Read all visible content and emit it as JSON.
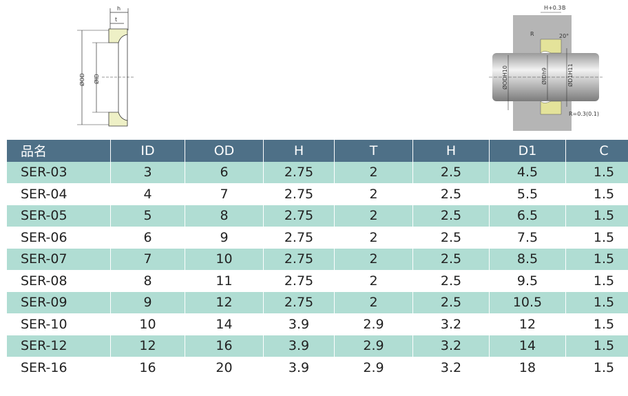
{
  "diagram_left": {
    "labels": [
      "h",
      "t",
      "ØOD",
      "ØID"
    ]
  },
  "diagram_right": {
    "labels": [
      "H+0.3",
      "B",
      "R",
      "20°",
      "ØODH10",
      "ØIDh9",
      "ØD1H11",
      "R=0.3(0.1)"
    ]
  },
  "table": {
    "header": [
      "品名",
      "ID",
      "OD",
      "H",
      "T",
      "H",
      "D1",
      "C"
    ],
    "rows": [
      [
        "SER-03",
        "3",
        "6",
        "2.75",
        "2",
        "2.5",
        "4.5",
        "1.5"
      ],
      [
        "SER-04",
        "4",
        "7",
        "2.75",
        "2",
        "2.5",
        "5.5",
        "1.5"
      ],
      [
        "SER-05",
        "5",
        "8",
        "2.75",
        "2",
        "2.5",
        "6.5",
        "1.5"
      ],
      [
        "SER-06",
        "6",
        "9",
        "2.75",
        "2",
        "2.5",
        "7.5",
        "1.5"
      ],
      [
        "SER-07",
        "7",
        "10",
        "2.75",
        "2",
        "2.5",
        "8.5",
        "1.5"
      ],
      [
        "SER-08",
        "8",
        "11",
        "2.75",
        "2",
        "2.5",
        "9.5",
        "1.5"
      ],
      [
        "SER-09",
        "9",
        "12",
        "2.75",
        "2",
        "2.5",
        "10.5",
        "1.5"
      ],
      [
        "SER-10",
        "10",
        "14",
        "3.9",
        "2.9",
        "3.2",
        "12",
        "1.5"
      ],
      [
        "SER-12",
        "12",
        "16",
        "3.9",
        "2.9",
        "3.2",
        "14",
        "1.5"
      ],
      [
        "SER-16",
        "16",
        "20",
        "3.9",
        "2.9",
        "3.2",
        "18",
        "1.5"
      ]
    ]
  }
}
